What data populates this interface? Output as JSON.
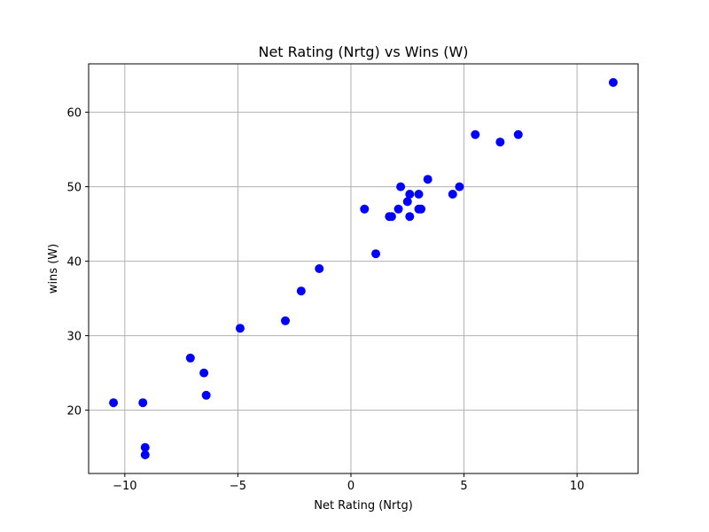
{
  "chart_data": {
    "type": "scatter",
    "title": "Net Rating (Nrtg) vs Wins (W)",
    "xlabel": "Net Rating (Nrtg)",
    "ylabel": "wins (W)",
    "xlim": [
      -11.6,
      12.7
    ],
    "ylim": [
      11.5,
      66.5
    ],
    "xticks": [
      -10,
      -5,
      0,
      5,
      10
    ],
    "yticks": [
      20,
      30,
      40,
      50,
      60
    ],
    "grid": true,
    "marker_color": "#0000ff",
    "points": [
      {
        "x": -10.5,
        "y": 21
      },
      {
        "x": -9.2,
        "y": 21
      },
      {
        "x": -9.1,
        "y": 15
      },
      {
        "x": -9.1,
        "y": 14
      },
      {
        "x": -7.1,
        "y": 27
      },
      {
        "x": -6.5,
        "y": 25
      },
      {
        "x": -6.4,
        "y": 22
      },
      {
        "x": -4.9,
        "y": 31
      },
      {
        "x": -2.9,
        "y": 32
      },
      {
        "x": -2.2,
        "y": 36
      },
      {
        "x": -1.4,
        "y": 39
      },
      {
        "x": 0.6,
        "y": 47
      },
      {
        "x": 1.1,
        "y": 41
      },
      {
        "x": 1.7,
        "y": 46
      },
      {
        "x": 1.8,
        "y": 46
      },
      {
        "x": 2.1,
        "y": 47
      },
      {
        "x": 2.2,
        "y": 50
      },
      {
        "x": 2.5,
        "y": 48
      },
      {
        "x": 2.6,
        "y": 49
      },
      {
        "x": 2.6,
        "y": 46
      },
      {
        "x": 3.0,
        "y": 49
      },
      {
        "x": 3.0,
        "y": 47
      },
      {
        "x": 3.1,
        "y": 47
      },
      {
        "x": 3.4,
        "y": 51
      },
      {
        "x": 4.5,
        "y": 49
      },
      {
        "x": 4.8,
        "y": 50
      },
      {
        "x": 5.5,
        "y": 57
      },
      {
        "x": 6.6,
        "y": 56
      },
      {
        "x": 7.4,
        "y": 57
      },
      {
        "x": 11.6,
        "y": 64
      }
    ]
  }
}
